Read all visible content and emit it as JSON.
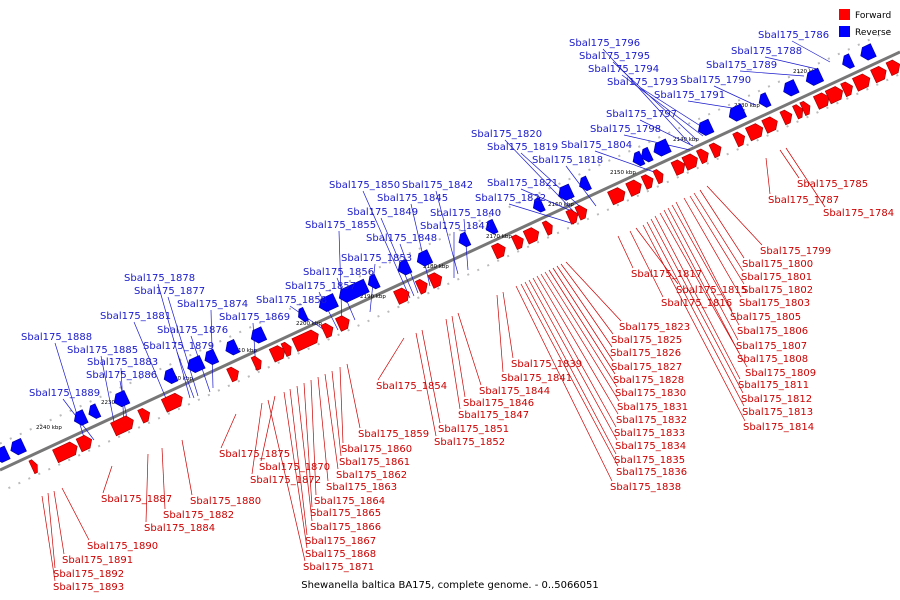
{
  "caption": "Shewanella baltica BA175, complete genome. - 0..5066051",
  "legend": [
    {
      "label": "Forward",
      "color": "#ff0000"
    },
    {
      "label": "Reverse",
      "color": "#0000ff"
    }
  ],
  "colors": {
    "forward": "#ff0000",
    "reverse": "#0000ff",
    "forward_label": "#cc0000",
    "reverse_label": "#1a1acc",
    "axis": "#808080"
  },
  "ticks": [
    "2120 kbp",
    "2130 kbp",
    "2140 kbp",
    "2150 kbp",
    "2160 kbp",
    "2170 kbp",
    "2180 kbp",
    "2190 kbp",
    "2200 kbp",
    "2210 kbp",
    "2220 kbp",
    "2230 kbp",
    "2240 kbp"
  ],
  "reverse_genes": [
    "Sbal175_1786",
    "Sbal175_1788",
    "Sbal175_1789",
    "Sbal175_1790",
    "Sbal175_1791",
    "Sbal175_1793",
    "Sbal175_1794",
    "Sbal175_1795",
    "Sbal175_1796",
    "Sbal175_1797",
    "Sbal175_1798",
    "Sbal175_1804",
    "Sbal175_1818",
    "Sbal175_1819",
    "Sbal175_1820",
    "Sbal175_1821",
    "Sbal175_1822",
    "Sbal175_1840",
    "Sbal175_1842",
    "Sbal175_1843",
    "Sbal175_1845",
    "Sbal175_1848",
    "Sbal175_1849",
    "Sbal175_1850",
    "Sbal175_1853",
    "Sbal175_1855",
    "Sbal175_1856",
    "Sbal175_1857",
    "Sbal175_1858",
    "Sbal175_1869",
    "Sbal175_1874",
    "Sbal175_1876",
    "Sbal175_1877",
    "Sbal175_1878",
    "Sbal175_1879",
    "Sbal175_1881",
    "Sbal175_1883",
    "Sbal175_1885",
    "Sbal175_1886",
    "Sbal175_1888",
    "Sbal175_1889"
  ],
  "forward_genes": [
    "Sbal175_1784",
    "Sbal175_1785",
    "Sbal175_1787",
    "Sbal175_1799",
    "Sbal175_1800",
    "Sbal175_1801",
    "Sbal175_1802",
    "Sbal175_1803",
    "Sbal175_1805",
    "Sbal175_1806",
    "Sbal175_1807",
    "Sbal175_1808",
    "Sbal175_1809",
    "Sbal175_1811",
    "Sbal175_1812",
    "Sbal175_1813",
    "Sbal175_1814",
    "Sbal175_1815",
    "Sbal175_1816",
    "Sbal175_1817",
    "Sbal175_1823",
    "Sbal175_1825",
    "Sbal175_1826",
    "Sbal175_1827",
    "Sbal175_1828",
    "Sbal175_1830",
    "Sbal175_1831",
    "Sbal175_1832",
    "Sbal175_1833",
    "Sbal175_1834",
    "Sbal175_1835",
    "Sbal175_1836",
    "Sbal175_1838",
    "Sbal175_1839",
    "Sbal175_1841",
    "Sbal175_1844",
    "Sbal175_1846",
    "Sbal175_1847",
    "Sbal175_1851",
    "Sbal175_1852",
    "Sbal175_1854",
    "Sbal175_1859",
    "Sbal175_1860",
    "Sbal175_1861",
    "Sbal175_1862",
    "Sbal175_1863",
    "Sbal175_1864",
    "Sbal175_1865",
    "Sbal175_1866",
    "Sbal175_1867",
    "Sbal175_1868",
    "Sbal175_1870",
    "Sbal175_1871",
    "Sbal175_1872",
    "Sbal175_1875",
    "Sbal175_1880",
    "Sbal175_1882",
    "Sbal175_1884",
    "Sbal175_1887",
    "Sbal175_1890",
    "Sbal175_1891",
    "Sbal175_1892",
    "Sbal175_1893"
  ]
}
